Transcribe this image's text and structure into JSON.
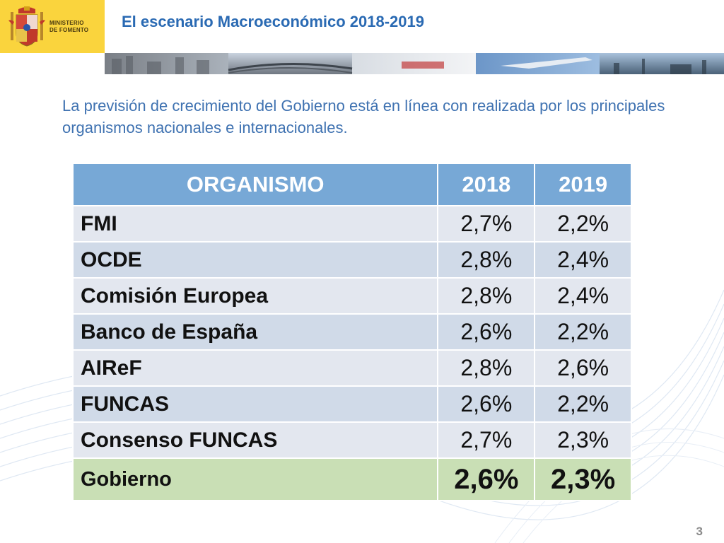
{
  "header": {
    "ministry": "MINISTERIO\nDE FOMENTO",
    "title": "El escenario Macroeconómico 2018-2019"
  },
  "subtitle": "La previsión de crecimiento del Gobierno está en línea con realizada por los principales organismos nacionales e internacionales.",
  "table": {
    "headers": [
      "ORGANISMO",
      "2018",
      "2019"
    ],
    "rows": [
      {
        "organismo": "FMI",
        "y2018": "2,7%",
        "y2019": "2,2%"
      },
      {
        "organismo": "OCDE",
        "y2018": "2,8%",
        "y2019": "2,4%"
      },
      {
        "organismo": "Comisión Europea",
        "y2018": "2,8%",
        "y2019": "2,4%"
      },
      {
        "organismo": "Banco de España",
        "y2018": "2,6%",
        "y2019": "2,2%"
      },
      {
        "organismo": "AIReF",
        "y2018": "2,8%",
        "y2019": "2,6%"
      },
      {
        "organismo": "FUNCAS",
        "y2018": "2,6%",
        "y2019": "2,2%"
      },
      {
        "organismo": "Consenso FUNCAS",
        "y2018": "2,7%",
        "y2019": "2,3%"
      },
      {
        "organismo": "Gobierno",
        "y2018": "2,6%",
        "y2019": "2,3%"
      }
    ]
  },
  "page_number": "3",
  "colors": {
    "logo_bg": "#fad43d",
    "title": "#2a6ab3",
    "header_row": "#77a8d6",
    "government_row": "#c9dfb5"
  }
}
